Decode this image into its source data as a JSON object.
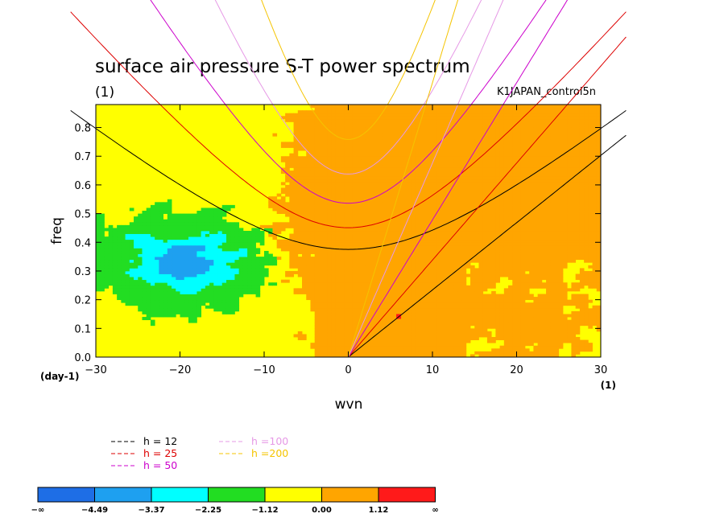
{
  "chart_data": {
    "type": "heatmap",
    "title": "surface air pressure S-T power spectrum",
    "subtitle": "(1)",
    "run_label": "K1JAPAN_control5n",
    "xlabel": "wvn",
    "ylabel": "freq",
    "x_unit": "(1)",
    "y_unit": "(day-1)",
    "xlim": [
      -30,
      30
    ],
    "ylim": [
      0,
      0.88
    ],
    "x_ticks": [
      -30,
      -20,
      -10,
      0,
      10,
      20,
      30
    ],
    "y_ticks": [
      0.0,
      0.1,
      0.2,
      0.3,
      0.4,
      0.5,
      0.6,
      0.7,
      0.8
    ],
    "x_tick_labels": [
      "−30",
      "−20",
      "−10",
      "0",
      "10",
      "20",
      "30"
    ],
    "y_tick_labels": [
      "0.0",
      "0.1",
      "0.2",
      "0.3",
      "0.4",
      "0.5",
      "0.6",
      "0.7",
      "0.8"
    ],
    "grid": false,
    "dispersion_curves": [
      {
        "name": "h = 12",
        "color": "#000000"
      },
      {
        "name": "h = 25",
        "color": "#dd0000"
      },
      {
        "name": "h = 50",
        "color": "#cc00cc"
      },
      {
        "name": "h =100",
        "color": "#e699e6"
      },
      {
        "name": "h =200",
        "color": "#f5c400"
      }
    ],
    "colorbar": {
      "levels": [
        "−∞",
        "−4.49",
        "−3.37",
        "−2.25",
        "−1.12",
        "0.00",
        "1.12",
        "∞"
      ],
      "colors": [
        "#1e6ee6",
        "#1ea0f0",
        "#00ffff",
        "#22dd22",
        "#ffff00",
        "#ffa500",
        "#ff1a1a"
      ]
    }
  }
}
